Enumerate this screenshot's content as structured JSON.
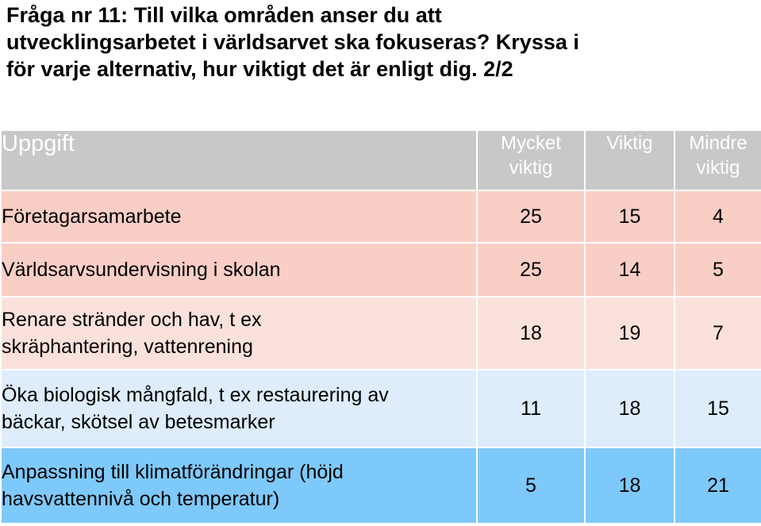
{
  "question": {
    "line1": "Fråga nr 11: Till vilka områden anser du att",
    "line2": "utvecklingsarbetet i världsarvet ska fokuseras? Kryssa i",
    "line3": "för varje alternativ, hur viktigt det är enligt dig. 2/2"
  },
  "table": {
    "headers": {
      "task": "Uppgift",
      "very_important": [
        "Mycket",
        "viktig"
      ],
      "important": "Viktig",
      "less_important": [
        "Mindre",
        "viktig"
      ]
    },
    "rows": [
      {
        "task": [
          "Företagarsamarbete"
        ],
        "very_important": "25",
        "important": "15",
        "less_important": "4",
        "bg": "#f9cec5"
      },
      {
        "task": [
          "Världsarvsundervisning i skolan"
        ],
        "very_important": "25",
        "important": "14",
        "less_important": "5",
        "bg": "#f9cec5"
      },
      {
        "task": [
          "Renare stränder och hav, t ex",
          "skräphantering, vattenrening"
        ],
        "very_important": "18",
        "important": "19",
        "less_important": "7",
        "bg": "#fbe1dc"
      },
      {
        "task": [
          "Öka biologisk mångfald, t ex restaurering av",
          "bäckar, skötsel av betesmarker"
        ],
        "very_important": "11",
        "important": "18",
        "less_important": "15",
        "bg": "#deecfc"
      },
      {
        "task": [
          "Anpassning till klimatförändringar (höjd",
          "havsvattennivå och temperatur)"
        ],
        "very_important": "5",
        "important": "18",
        "less_important": "21",
        "bg": "#7ec9fb"
      }
    ]
  }
}
